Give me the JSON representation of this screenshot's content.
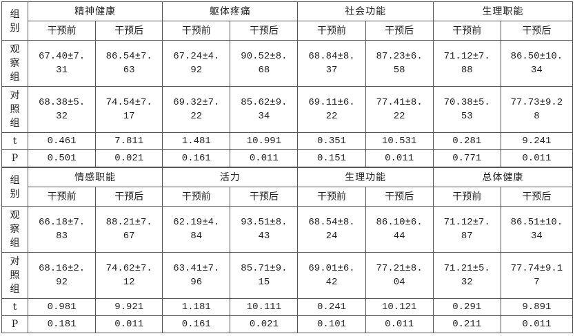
{
  "top": {
    "group_label": "组\n别",
    "domains": [
      "精神健康",
      "躯体疼痛",
      "社会功能",
      "生理职能"
    ],
    "sub_headers": [
      "干预前",
      "干预后",
      "干预前",
      "干预后",
      "干预前",
      "干预后",
      "干预前",
      "干预后"
    ],
    "rows": [
      {
        "label": "观\n察\n组",
        "cells": [
          "67.40±7.\n31",
          "86.54±7.\n63",
          "67.24±4.\n92",
          "90.52±8.\n68",
          "68.84±8.\n37",
          "87.23±6.\n58",
          "71.12±7.\n88",
          "86.50±10.\n34"
        ]
      },
      {
        "label": "对\n照\n组",
        "cells": [
          "68.38±5.\n32",
          "74.54±7.\n17",
          "69.32±7.\n22",
          "85.62±9.\n34",
          "69.11±6.\n22",
          "77.41±8.\n22",
          "70.38±5.\n53",
          "77.73±9.2\n8"
        ]
      },
      {
        "label": "t",
        "cells": [
          "0.461",
          "7.811",
          "1.481",
          "10.991",
          "0.351",
          "10.531",
          "0.281",
          "9.241"
        ]
      },
      {
        "label": "P",
        "cells": [
          "0.501",
          "0.021",
          "0.161",
          "0.011",
          "0.151",
          "0.011",
          "0.771",
          "0.011"
        ]
      }
    ]
  },
  "bottom": {
    "group_label": "组\n别",
    "domains": [
      "情感职能",
      "活力",
      "生理功能",
      "总体健康"
    ],
    "sub_headers": [
      "干预前",
      "干预后",
      "干预前",
      "干预后",
      "干预前",
      "干预后",
      "干预前",
      "干预后"
    ],
    "rows": [
      {
        "label": "观\n察\n组",
        "cells": [
          "66.18±7.\n83",
          "88.21±7.\n67",
          "62.19±4.\n84",
          "93.51±8.\n43",
          "68.54±8.\n24",
          "86.10±6.\n44",
          "71.12±7.\n87",
          "86.51±10.\n34"
        ]
      },
      {
        "label": "对\n照\n组",
        "cells": [
          "68.16±2.\n92",
          "74.62±7.\n12",
          "63.41±7.\n96",
          "85.71±9.\n15",
          "69.01±6.\n42",
          "77.21±8.\n04",
          "71.21±5.\n32",
          "77.74±9.1\n7"
        ]
      },
      {
        "label": "t",
        "cells": [
          "0.981",
          "9.921",
          "1.181",
          "10.111",
          "0.241",
          "10.121",
          "0.291",
          "9.891"
        ]
      },
      {
        "label": "P",
        "cells": [
          "0.181",
          "0.011",
          "0.161",
          "0.021",
          "0.101",
          "0.011",
          "0.211",
          "0.011"
        ]
      }
    ]
  }
}
